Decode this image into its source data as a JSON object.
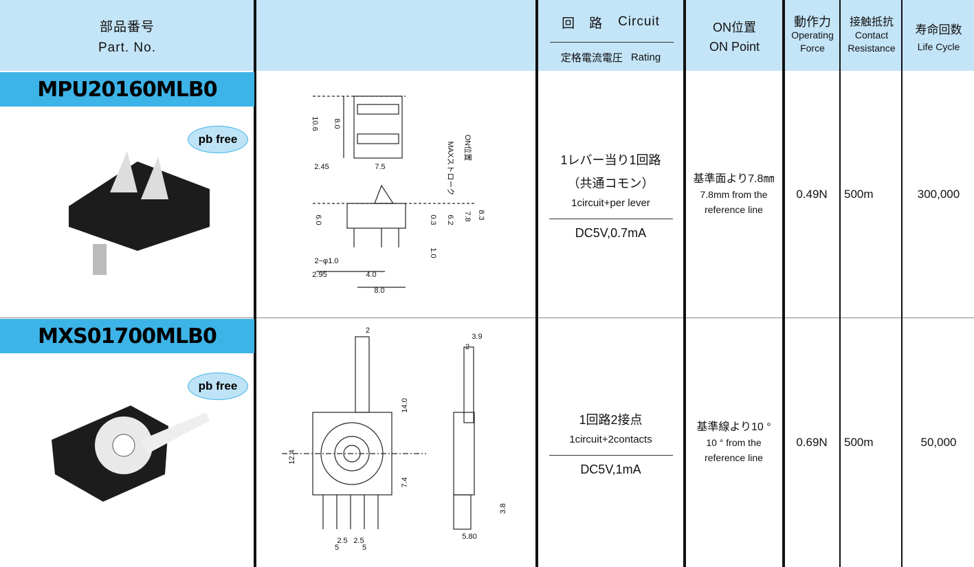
{
  "header": {
    "part_no": {
      "ja": "部品番号",
      "en": "Part. No."
    },
    "circuit": {
      "ja": "回　路",
      "en": "Circuit"
    },
    "rating": {
      "ja": "定格電流電圧",
      "en": "Rating"
    },
    "on_point": {
      "ja": "ON位置",
      "en": "ON Point"
    },
    "force": {
      "ja": "動作力",
      "en": [
        "Operating",
        "Force"
      ]
    },
    "resistance": {
      "ja": "接触抵抗",
      "en": [
        "Contact",
        "Resistance"
      ]
    },
    "life": {
      "ja": "寿命回数",
      "en": "Life Cycle"
    }
  },
  "rows": [
    {
      "part_no": "MPU20160MLB0",
      "badge": "pb free",
      "circuit": [
        "1レバー当り1回路",
        "（共通コモン）",
        "1circuit+per lever"
      ],
      "rating": "DC5V,0.7mA",
      "on_point": [
        "基準面より7.8㎜",
        "7.8mm from the",
        "reference  line"
      ],
      "force": "0.49N",
      "resistance": "500m",
      "life": "300,000",
      "drawing_labels": [
        "10.6",
        "8.0",
        "2.45",
        "7.5",
        "ON位置",
        "MAXストローク",
        "6.0",
        "0.3",
        "6.2",
        "7.8",
        "8.3",
        "1.0",
        "2−φ1.0",
        "2.95",
        "4.0",
        "8.0"
      ]
    },
    {
      "part_no": "MXS01700MLB0",
      "badge": "pb free",
      "circuit": [
        "1回路2接点",
        "1circuit+2contacts"
      ],
      "rating": "DC5V,1mA",
      "on_point": [
        "基準線より10 °",
        "10 ° from the",
        "reference line"
      ],
      "force": "0.69N",
      "resistance": "500m",
      "life": "50,000",
      "drawing_labels": [
        "2",
        "3.9",
        "2",
        "14.0",
        "12.4",
        "7.4",
        "3.8",
        "2.5",
        "2.5",
        "5",
        "5",
        "5.80"
      ]
    }
  ]
}
